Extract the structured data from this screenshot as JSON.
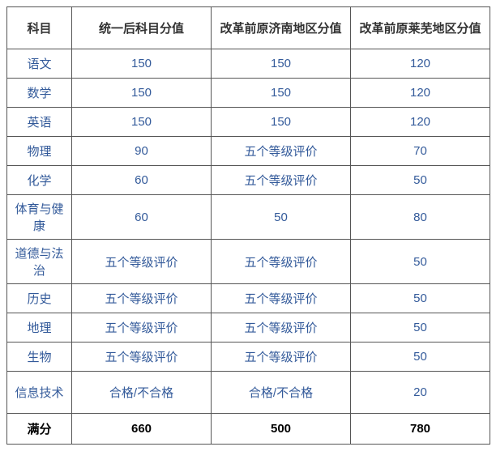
{
  "table": {
    "columns": [
      "科目",
      "统一后科目分值",
      "改革前原济南地区分值",
      "改革前原莱芜地区分值"
    ],
    "rows": [
      {
        "subject": "语文",
        "cells": [
          "150",
          "150",
          "120"
        ],
        "tall": false
      },
      {
        "subject": "数学",
        "cells": [
          "150",
          "150",
          "120"
        ],
        "tall": false
      },
      {
        "subject": "英语",
        "cells": [
          "150",
          "150",
          "120"
        ],
        "tall": false
      },
      {
        "subject": "物理",
        "cells": [
          "90",
          "五个等级评价",
          "70"
        ],
        "tall": false
      },
      {
        "subject": "化学",
        "cells": [
          "60",
          "五个等级评价",
          "50"
        ],
        "tall": false
      },
      {
        "subject": "体育与健康",
        "cells": [
          "60",
          "50",
          "80"
        ],
        "tall": true
      },
      {
        "subject": "道德与法治",
        "cells": [
          "五个等级评价",
          "五个等级评价",
          "50"
        ],
        "tall": true
      },
      {
        "subject": "历史",
        "cells": [
          "五个等级评价",
          "五个等级评价",
          "50"
        ],
        "tall": false
      },
      {
        "subject": "地理",
        "cells": [
          "五个等级评价",
          "五个等级评价",
          "50"
        ],
        "tall": false
      },
      {
        "subject": "生物",
        "cells": [
          "五个等级评价",
          "五个等级评价",
          "50"
        ],
        "tall": false
      },
      {
        "subject": "信息技术",
        "cells": [
          "合格/不合格",
          "合格/不合格",
          "20"
        ],
        "tall": true
      }
    ],
    "total": {
      "label": "满分",
      "cells": [
        "660",
        "500",
        "780"
      ]
    },
    "colors": {
      "border": "#555555",
      "header_text": "#333333",
      "body_text": "#335a9a",
      "total_text": "#000000",
      "background": "#ffffff"
    },
    "fontsize": {
      "header": 15,
      "body": 15
    }
  }
}
